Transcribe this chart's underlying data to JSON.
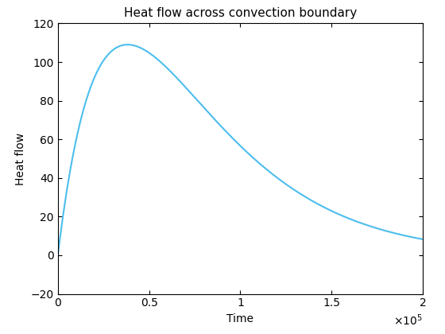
{
  "title": "Heat flow across convection boundary",
  "xlabel": "Time",
  "ylabel": "Heat flow",
  "xlim": [
    0,
    200000
  ],
  "ylim": [
    -20,
    120
  ],
  "xticks": [
    0,
    50000,
    100000,
    150000,
    200000
  ],
  "xtick_labels": [
    "0",
    "0.5",
    "1",
    "1.5",
    "2"
  ],
  "yticks": [
    -20,
    0,
    20,
    40,
    60,
    80,
    100,
    120
  ],
  "line_color": "#4DBEEE",
  "line_width": 1.5,
  "peak_time": 30000,
  "peak_value": 109,
  "t_start": 0,
  "t_end": 200000,
  "n_points": 3000,
  "bg_color": "#ffffff",
  "title_fontsize": 11,
  "label_fontsize": 10,
  "tick_fontsize": 10
}
